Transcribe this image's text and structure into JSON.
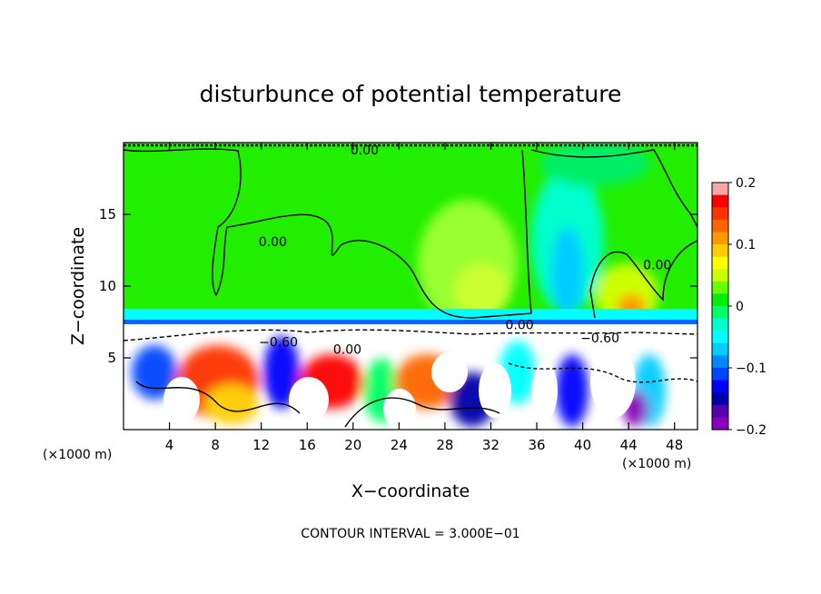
{
  "chart_data": {
    "type": "heatmap",
    "title": "disturbunce of potential temperature",
    "xlabel": "X−coordinate",
    "ylabel": "Z−coordinate",
    "x_unit_left": "(×1000 m)",
    "x_unit_right": "(×1000 m)",
    "footer": "CONTOUR INTERVAL = 3.000E−01",
    "xlim": [
      0,
      50
    ],
    "ylim": [
      0,
      20
    ],
    "x_ticks": [
      4,
      8,
      12,
      16,
      20,
      24,
      28,
      32,
      36,
      40,
      44,
      48
    ],
    "y_ticks": [
      5,
      10,
      15
    ],
    "colorbar": {
      "range": [
        -0.2,
        0.2
      ],
      "tick_values": [
        0.2,
        0.1,
        0,
        -0.1,
        -0.2
      ],
      "tick_labels": [
        "0.2",
        "0.1",
        "0",
        "−0.1",
        "−0.2"
      ],
      "colors": [
        "#f7a6a6",
        "#ff0000",
        "#ff3300",
        "#ff6600",
        "#ff9900",
        "#ffcc00",
        "#ffff00",
        "#ccff00",
        "#66ff00",
        "#00ee00",
        "#00ff66",
        "#00ffcc",
        "#00ffff",
        "#00ccff",
        "#0088ff",
        "#0044ff",
        "#0000ff",
        "#0000aa",
        "#5500aa",
        "#8800bb"
      ]
    },
    "contour_labels": [
      {
        "text": "0.00",
        "x": 21,
        "y": 19.5
      },
      {
        "text": "0.00",
        "x": 13,
        "y": 13.1
      },
      {
        "text": "0.00",
        "x": 46.5,
        "y": 11.5
      },
      {
        "text": "0.00",
        "x": 34.5,
        "y": 7.3
      },
      {
        "text": "0.00",
        "x": 19.5,
        "y": 5.6
      },
      {
        "text": "−0.60",
        "x": 13.5,
        "y": 6.1
      },
      {
        "text": "−0.60",
        "x": 41.5,
        "y": 6.4
      }
    ]
  }
}
